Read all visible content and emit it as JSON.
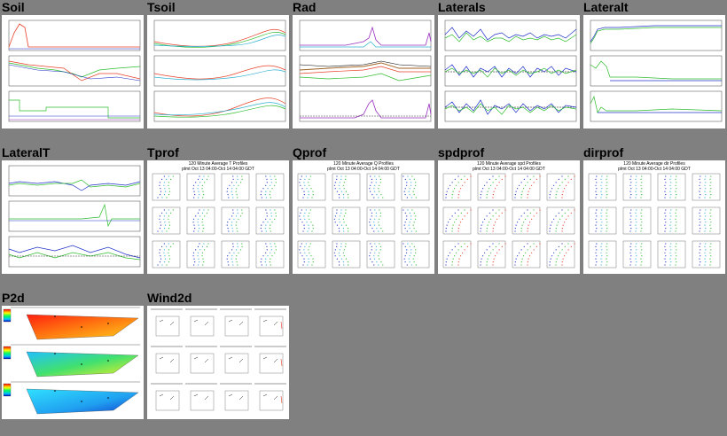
{
  "tiles": [
    {
      "label": "Soil"
    },
    {
      "label": "Tsoil"
    },
    {
      "label": "Rad"
    },
    {
      "label": "Laterals"
    },
    {
      "label": "Lateralt"
    },
    {
      "label": "LateralT"
    },
    {
      "label": "Tprof",
      "title_line1": "120 Minute Average T Profiles",
      "title_line2": "plmt Oct 13 04:00-Oct 14 04:00 GDT"
    },
    {
      "label": "Qprof",
      "title_line1": "120 Minute Average Q Profiles",
      "title_line2": "plmt Oct 13 04:00-Oct 14 04:00 GDT"
    },
    {
      "label": "spdprof",
      "title_line1": "120 Minute Average spd Profiles",
      "title_line2": "plmt Oct 13 04:00-Oct 14 04:00 GDT"
    },
    {
      "label": "dirprof",
      "title_line1": "120 Minute Average dir Profiles",
      "title_line2": "plmt Oct 13 04:00-Oct 14 04:00 GDT"
    },
    {
      "label": "P2d"
    },
    {
      "label": "Wind2d"
    }
  ],
  "colors": {
    "background": "#808080",
    "thumb_bg": "#ffffff",
    "red": "#e8412a",
    "green": "#2ebd2e",
    "blue": "#2030c8",
    "cyan": "#30b0d0",
    "purple": "#9a30c0",
    "brown": "#a06020"
  }
}
